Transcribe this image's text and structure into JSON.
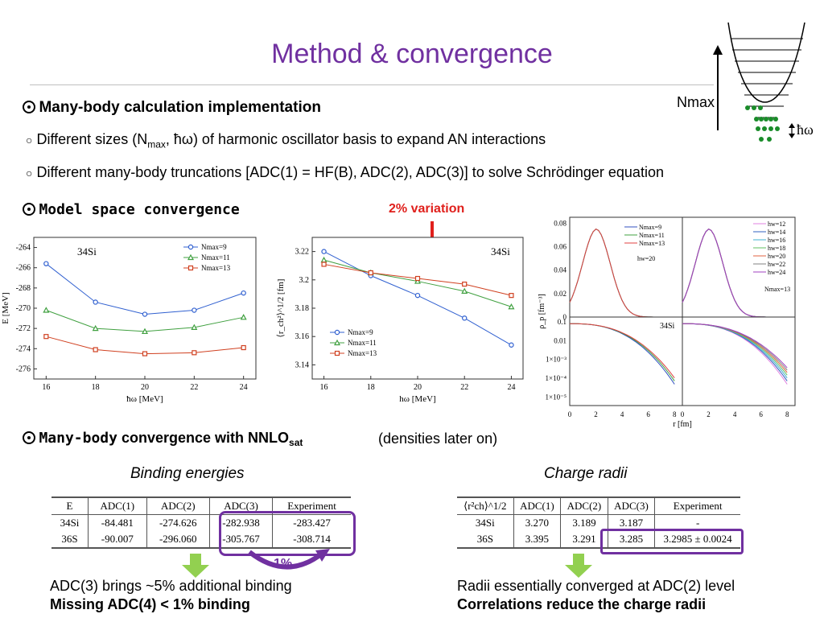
{
  "title": "Method & convergence",
  "section1": {
    "heading": "Many-body calculation implementation",
    "item1_pre": "Different sizes (N",
    "item1_sub": "max",
    "item1_post": ", ħω) of harmonic oscillator basis to expand AN interactions",
    "item2": "Different many-body truncations [ADC(1) = HF(B), ADC(2), ADC(3)] to solve Schrödinger equation"
  },
  "ho_diagram": {
    "nmax_label": "Nmax",
    "hw_label": "ħω"
  },
  "section2": {
    "heading": "Model space convergence",
    "variation_label": "2% variation"
  },
  "chart_energy": {
    "type": "line",
    "nucleus": "34Si",
    "xlabel": "ħω [MeV]",
    "ylabel": "E [MeV]",
    "x": [
      16,
      18,
      20,
      22,
      24
    ],
    "xticks": [
      "16",
      "18",
      "20",
      "22",
      "24"
    ],
    "yticks": [
      "-264",
      "-266",
      "-268",
      "-270",
      "-272",
      "-274",
      "-276"
    ],
    "ylim": [
      -277,
      -263
    ],
    "legend_prefix": "N",
    "legend_sub": "max",
    "series": [
      {
        "name": "9",
        "color": "#3060d0",
        "marker": "circle",
        "values": [
          -265.6,
          -269.4,
          -270.6,
          -270.2,
          -268.5
        ]
      },
      {
        "name": "11",
        "color": "#40a040",
        "marker": "triangle",
        "values": [
          -270.2,
          -272.0,
          -272.3,
          -271.9,
          -270.9
        ]
      },
      {
        "name": "13",
        "color": "#d04020",
        "marker": "square",
        "values": [
          -272.8,
          -274.1,
          -274.5,
          -274.4,
          -273.9
        ]
      }
    ]
  },
  "chart_radius": {
    "type": "line",
    "nucleus": "34Si",
    "xlabel": "hω [MeV]",
    "ylabel": "⟨r_ch²⟩^1/2 [fm]",
    "x": [
      16,
      18,
      20,
      22,
      24
    ],
    "xticks": [
      "16",
      "18",
      "20",
      "22",
      "24"
    ],
    "yticks": [
      "3.22",
      "3.2",
      "3.18",
      "3.16",
      "3.14"
    ],
    "ylim": [
      3.13,
      3.23
    ],
    "series": [
      {
        "name": "Nmax=9",
        "color": "#3060d0",
        "marker": "circle",
        "values": [
          3.22,
          3.203,
          3.189,
          3.173,
          3.154
        ]
      },
      {
        "name": "Nmax=11",
        "color": "#40a040",
        "marker": "triangle",
        "values": [
          3.214,
          3.205,
          3.199,
          3.192,
          3.181
        ]
      },
      {
        "name": "Nmax=13",
        "color": "#d04020",
        "marker": "square",
        "values": [
          3.211,
          3.205,
          3.201,
          3.197,
          3.189
        ]
      }
    ]
  },
  "chart_density": {
    "type": "line",
    "nucleus": "34Si",
    "xlabel": "r [fm]",
    "ylabel": "ρ_p [fm⁻³]",
    "xticks": [
      "0",
      "2",
      "4",
      "6",
      "8"
    ],
    "yticks_top": [
      "0.08",
      "0.06",
      "0.04",
      "0.02",
      "0"
    ],
    "yticks_bottom": [
      "0.1",
      "0.01",
      "1×10⁻³",
      "1×10⁻⁴",
      "1×10⁻⁵"
    ],
    "left_legend": [
      "Nmax=9",
      "Nmax=11",
      "Nmax=13"
    ],
    "left_note": "hw=20",
    "right_legend": [
      "hw=12",
      "hw=14",
      "hw=16",
      "hw=18",
      "hw=20",
      "hw=22",
      "hw=24"
    ],
    "right_note": "Nmax=13",
    "colors_left": [
      "#3050c0",
      "#40a040",
      "#e04040"
    ],
    "colors_right": [
      "#e080e0",
      "#3060c0",
      "#40b0d0",
      "#60c060",
      "#e06040",
      "#808080",
      "#a040c0"
    ]
  },
  "section3": {
    "heading_mono": "Many-body",
    "heading_rest": " convergence with NNLO",
    "heading_sub": "sat",
    "note": "(densities later on)",
    "binding_label": "Binding energies",
    "charge_label": "Charge radii"
  },
  "binding_table": {
    "headers": [
      "E",
      "ADC(1)",
      "ADC(2)",
      "ADC(3)",
      "Experiment"
    ],
    "rows": [
      [
        "34Si",
        "-84.481",
        "-274.626",
        "-282.938",
        "-283.427"
      ],
      [
        "36S",
        "-90.007",
        "-296.060",
        "-305.767",
        "-308.714"
      ]
    ]
  },
  "radii_table": {
    "headers": [
      "⟨r²ch⟩^1/2",
      "ADC(1)",
      "ADC(2)",
      "ADC(3)",
      "Experiment"
    ],
    "rows": [
      [
        "34Si",
        "3.270",
        "3.189",
        "3.187",
        "-"
      ],
      [
        "36S",
        "3.395",
        "3.291",
        "3.285",
        "3.2985 ± 0.0024"
      ]
    ]
  },
  "percent_label": "1%",
  "conclusions_left": [
    "ADC(3) brings ~5% additional binding",
    "Missing ADC(4) < 1% binding"
  ],
  "conclusions_right": [
    "Radii essentially converged at ADC(2) level",
    "Correlations reduce the charge radii"
  ],
  "colors": {
    "title": "#7030a0",
    "highlight": "#7030a0",
    "arrow_green": "#92d050",
    "red_arrow": "#e0201c"
  }
}
